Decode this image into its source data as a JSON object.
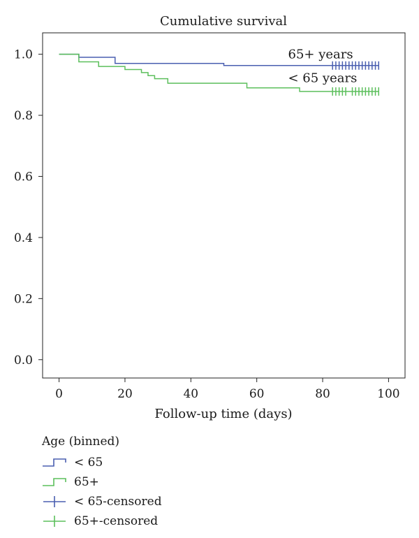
{
  "chart_data": {
    "type": "line",
    "step": true,
    "title": "Cumulative survival",
    "xlabel": "Follow-up time (days)",
    "ylabel": "",
    "xlim": [
      -5,
      105
    ],
    "ylim": [
      -0.06,
      1.07
    ],
    "xticks": [
      "0",
      "20",
      "40",
      "60",
      "80",
      "100"
    ],
    "xtick_values": [
      0,
      20,
      40,
      60,
      80,
      100
    ],
    "yticks": [
      "0.0",
      "0.2",
      "0.4",
      "0.6",
      "0.8",
      "1.0"
    ],
    "ytick_values": [
      0.0,
      0.2,
      0.4,
      0.6,
      0.8,
      1.0
    ],
    "grid": false,
    "legend_position": "bottom-left",
    "legend_title": "Age (binned)",
    "series": [
      {
        "name": "< 65",
        "color": "#4a5fb0",
        "x": [
          0,
          6,
          17,
          50,
          97
        ],
        "y": [
          1.0,
          0.99,
          0.97,
          0.963,
          0.963
        ],
        "censored_label": "< 65-censored",
        "censored_x": [
          83,
          84,
          85,
          86,
          87,
          88,
          89,
          90,
          91,
          92,
          93,
          94,
          95,
          96,
          97
        ],
        "censored_y": 0.963
      },
      {
        "name": "65+",
        "color": "#5cbf5c",
        "x": [
          0,
          6,
          12,
          20,
          25,
          27,
          29,
          33,
          57,
          73,
          97
        ],
        "y": [
          1.0,
          0.975,
          0.96,
          0.95,
          0.94,
          0.93,
          0.92,
          0.905,
          0.89,
          0.878,
          0.878
        ],
        "censored_label": "65+-censored",
        "censored_x": [
          83,
          84,
          85,
          86,
          87,
          89,
          90,
          91,
          92,
          93,
          94,
          95,
          96,
          97
        ],
        "censored_y": 0.878
      }
    ],
    "annotations": [
      {
        "text": "65+ years",
        "x": 69.5,
        "y": 1.0
      },
      {
        "text": "< 65 years",
        "x": 69.5,
        "y": 0.922
      }
    ]
  }
}
